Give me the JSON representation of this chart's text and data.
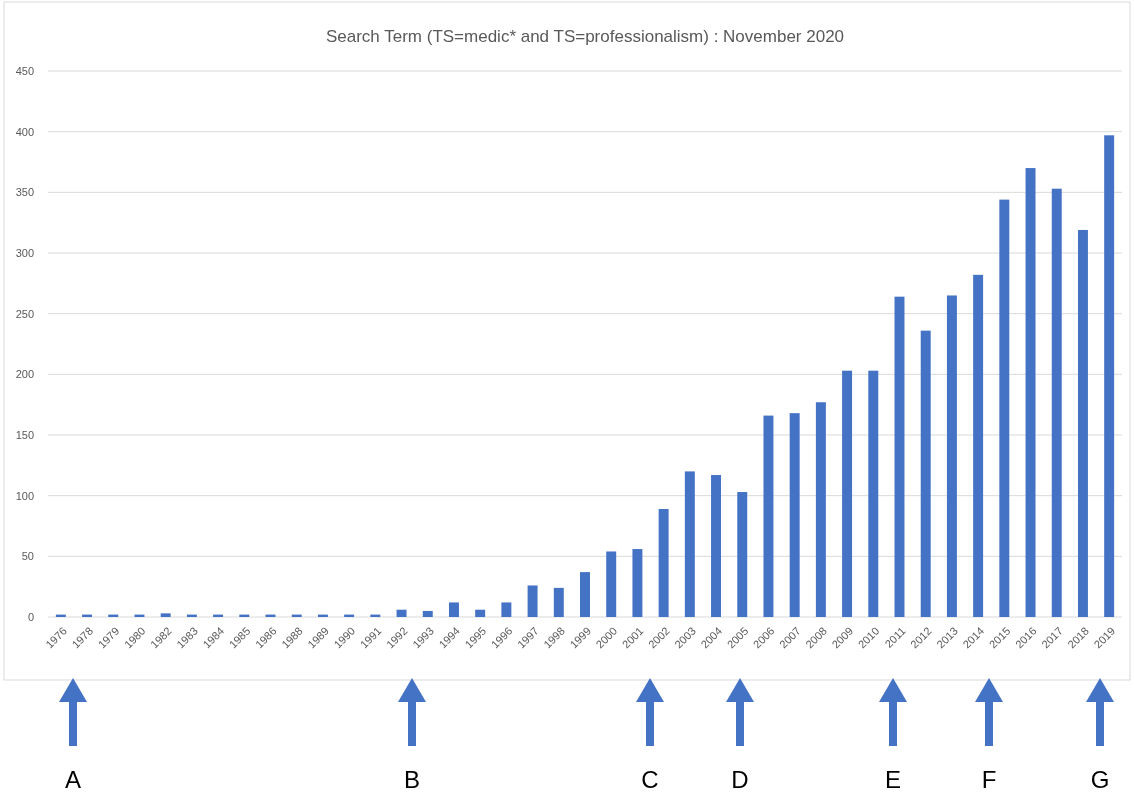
{
  "chart_data": {
    "type": "bar",
    "title": "Search Term (TS=medic* and TS=professionalism) : November 2020",
    "categories": [
      "1976",
      "1978",
      "1979",
      "1980",
      "1982",
      "1983",
      "1984",
      "1985",
      "1986",
      "1988",
      "1989",
      "1990",
      "1991",
      "1992",
      "1993",
      "1994",
      "1995",
      "1996",
      "1997",
      "1998",
      "1999",
      "2000",
      "2001",
      "2002",
      "2003",
      "2004",
      "2005",
      "2006",
      "2007",
      "2008",
      "2009",
      "2010",
      "2011",
      "2012",
      "2013",
      "2014",
      "2015",
      "2016",
      "2017",
      "2018",
      "2019"
    ],
    "values": [
      2,
      2,
      2,
      2,
      3,
      2,
      2,
      2,
      2,
      2,
      2,
      2,
      2,
      6,
      5,
      12,
      6,
      12,
      26,
      24,
      37,
      54,
      56,
      89,
      120,
      117,
      103,
      166,
      168,
      177,
      203,
      203,
      264,
      236,
      265,
      282,
      344,
      370,
      353,
      319,
      397
    ],
    "color": "#4472c4",
    "ylim": [
      0,
      450
    ],
    "yticks": [
      0,
      50,
      100,
      150,
      200,
      250,
      300,
      350,
      400,
      450
    ],
    "grid": "y",
    "annotations": [
      "A",
      "B",
      "C",
      "D",
      "E",
      "F",
      "G"
    ]
  }
}
